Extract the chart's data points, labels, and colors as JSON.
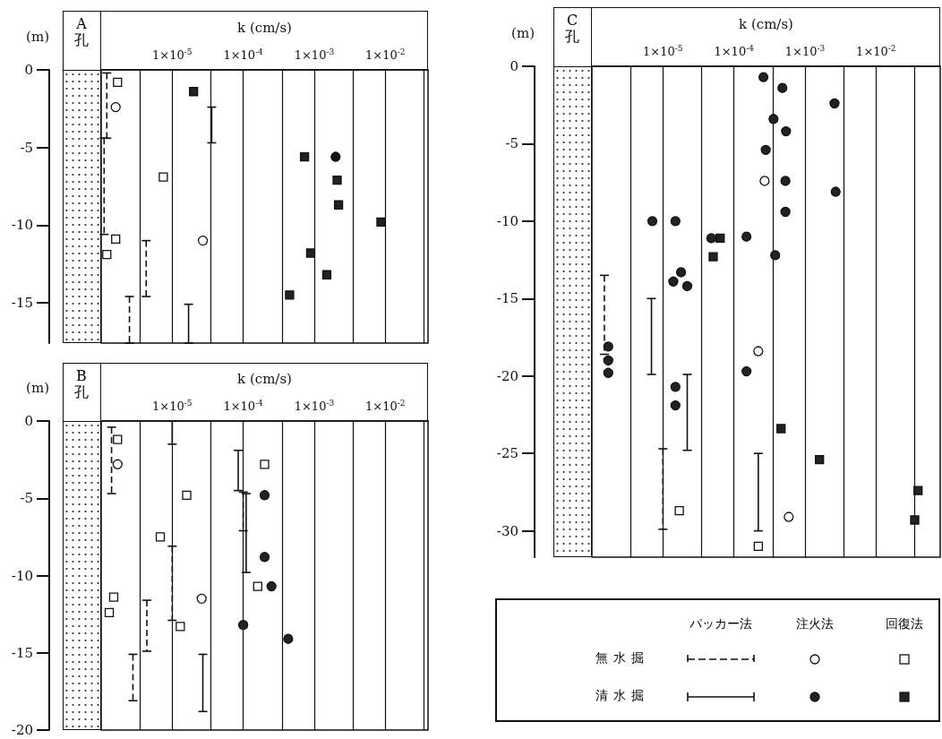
{
  "chart_data": [
    {
      "type": "scatter",
      "title": "A孔",
      "xlabel": "k (cm/s)",
      "ylabel": "(m)",
      "log": "x",
      "grid": "x",
      "xlim": [
        1e-06,
        0.04
      ],
      "ylim": [
        -17.6,
        0
      ],
      "xticks": [
        {
          "value": 3.5e-06,
          "label": null
        },
        {
          "value": 1e-05,
          "label": "1×10$^{-5}$"
        },
        {
          "value": 3.5e-05,
          "label": null
        },
        {
          "value": 0.0001,
          "label": "1×10$^{-4}$"
        },
        {
          "value": 0.00035,
          "label": null
        },
        {
          "value": 0.001,
          "label": "1×10$^{-3}$"
        },
        {
          "value": 0.0035,
          "label": null
        },
        {
          "value": 0.01,
          "label": "1×10$^{-2}$"
        },
        {
          "value": 0.035,
          "label": null
        }
      ],
      "yticks": [
        0,
        -5,
        -10,
        -15
      ],
      "series": [
        {
          "type": "line",
          "line_style": "dashed",
          "color": "#111111",
          "x": [
            1.2e-06,
            1.2e-06
          ],
          "values": [
            -0.2,
            -4.4
          ]
        },
        {
          "type": "line",
          "line_style": "dashed",
          "color": "#111111",
          "x": [
            1.1e-06,
            1.1e-06
          ],
          "values": [
            -4.4,
            -10.6
          ]
        },
        {
          "type": "line",
          "line_style": "dashed",
          "color": "#111111",
          "x": [
            4.3e-06,
            4.3e-06
          ],
          "values": [
            -11.0,
            -14.6
          ]
        },
        {
          "type": "line",
          "line_style": "dashed",
          "color": "#111111",
          "x": [
            2.5e-06,
            2.5e-06
          ],
          "values": [
            -14.6,
            -17.6
          ]
        },
        {
          "type": "line",
          "line_style": "solid",
          "color": "#111111",
          "x": [
            3.6e-05,
            3.6e-05
          ],
          "values": [
            -2.4,
            -4.7
          ]
        },
        {
          "type": "line",
          "line_style": "solid",
          "color": "#111111",
          "x": [
            1.7e-05,
            1.7e-05
          ],
          "values": [
            -15.1,
            -17.6
          ]
        },
        {
          "marker": "circle",
          "color": "#ffffff",
          "x": [
            1.6e-06,
            2.7e-05
          ],
          "values": [
            -2.4,
            -11.0
          ]
        },
        {
          "marker": "circle",
          "color": "#111111",
          "x": [
            0.002
          ],
          "values": [
            -5.6
          ]
        },
        {
          "marker": "square",
          "color": "#ffffff",
          "x": [
            1.7e-06,
            7.5e-06,
            1.6e-06,
            1.2e-06
          ],
          "values": [
            -0.8,
            -6.9,
            -10.9,
            -11.9
          ]
        },
        {
          "marker": "square",
          "color": "#222222",
          "x": [
            2e-05,
            0.00073,
            0.0021,
            0.0022,
            0.0087,
            0.00089,
            0.0015,
            0.00045
          ],
          "values": [
            -1.4,
            -5.6,
            -7.1,
            -8.7,
            -9.8,
            -11.8,
            -13.2,
            -14.5
          ]
        }
      ]
    },
    {
      "type": "scatter",
      "title": "B孔",
      "xlabel": "k (cm/s)",
      "ylabel": "(m)",
      "log": "x",
      "grid": "x",
      "xlim": [
        1e-06,
        0.04
      ],
      "ylim": [
        -20,
        0
      ],
      "xticks": [
        {
          "value": 3.5e-06,
          "label": null
        },
        {
          "value": 1e-05,
          "label": "1×10$^{-5}$"
        },
        {
          "value": 3.5e-05,
          "label": null
        },
        {
          "value": 0.0001,
          "label": "1×10$^{-4}$"
        },
        {
          "value": 0.00035,
          "label": null
        },
        {
          "value": 0.001,
          "label": "1×10$^{-3}$"
        },
        {
          "value": 0.0035,
          "label": null
        },
        {
          "value": 0.01,
          "label": "1×10$^{-2}$"
        },
        {
          "value": 0.035,
          "label": null
        }
      ],
      "yticks": [
        0,
        -5,
        -10,
        -15,
        -20
      ],
      "series": [
        {
          "type": "line",
          "line_style": "dashed",
          "color": "#111111",
          "x": [
            1.4e-06,
            1.4e-06
          ],
          "values": [
            -0.4,
            -4.7
          ]
        },
        {
          "type": "line",
          "line_style": "dashed",
          "color": "#111111",
          "x": [
            1e-05,
            1e-05
          ],
          "values": [
            -8.1,
            -12.9
          ]
        },
        {
          "type": "line",
          "line_style": "dashed",
          "color": "#111111",
          "x": [
            4.4e-06,
            4.4e-06
          ],
          "values": [
            -11.6,
            -14.9
          ]
        },
        {
          "type": "line",
          "line_style": "dashed",
          "color": "#111111",
          "x": [
            2.8e-06,
            2.8e-06
          ],
          "values": [
            -15.1,
            -18.1
          ]
        },
        {
          "type": "line",
          "line_style": "dashed",
          "color": "#111111",
          "x": [
            0.0001,
            0.0001
          ],
          "values": [
            -4.6,
            -7.1
          ]
        },
        {
          "type": "line",
          "line_style": "solid",
          "color": "#111111",
          "x": [
            1e-05,
            1e-05
          ],
          "values": [
            0,
            -1.5
          ]
        },
        {
          "type": "line",
          "line_style": "solid",
          "color": "#111111",
          "x": [
            2.7e-05,
            2.7e-05
          ],
          "values": [
            -15.1,
            -18.8
          ]
        },
        {
          "type": "line",
          "line_style": "solid",
          "color": "#111111",
          "x": [
            8.5e-05,
            8.5e-05
          ],
          "values": [
            -1.9,
            -4.5
          ]
        },
        {
          "type": "line",
          "line_style": "solid",
          "color": "#111111",
          "x": [
            0.00011,
            0.00011
          ],
          "values": [
            -4.7,
            -9.8
          ]
        },
        {
          "marker": "circle",
          "color": "#ffffff",
          "x": [
            1.7e-06,
            2.6e-05
          ],
          "values": [
            -2.8,
            -11.5
          ]
        },
        {
          "marker": "circle",
          "color": "#222222",
          "x": [
            0.0002,
            0.0002,
            0.00025,
            0.0001,
            0.00043
          ],
          "values": [
            -4.8,
            -8.8,
            -10.7,
            -13.2,
            -14.1
          ]
        },
        {
          "marker": "square",
          "color": "#ffffff",
          "x": [
            1.7e-06,
            1.6e-05,
            6.8e-06,
            1.5e-06,
            1.3e-06,
            1.3e-05,
            0.0002,
            0.00016
          ],
          "values": [
            -1.2,
            -4.8,
            -7.5,
            -11.4,
            -12.4,
            -13.3,
            -2.8,
            -10.7
          ]
        }
      ]
    },
    {
      "type": "scatter",
      "title": "C孔",
      "xlabel": "k (cm/s)",
      "ylabel": "(m)",
      "log": "x",
      "grid": "x",
      "xlim": [
        1e-06,
        0.08
      ],
      "ylim": [
        -31.7,
        0
      ],
      "xticks": [
        {
          "value": 3.5e-06,
          "label": null
        },
        {
          "value": 1e-05,
          "label": "1×10$^{-5}$"
        },
        {
          "value": 3.5e-05,
          "label": null
        },
        {
          "value": 0.0001,
          "label": "1×10$^{-4}$"
        },
        {
          "value": 0.00035,
          "label": null
        },
        {
          "value": 0.001,
          "label": "1×10$^{-3}$"
        },
        {
          "value": 0.0035,
          "label": null
        },
        {
          "value": 0.01,
          "label": "1×10$^{-2}$"
        },
        {
          "value": 0.035,
          "label": null
        }
      ],
      "yticks": [
        0,
        -5,
        -10,
        -15,
        -20,
        -25,
        -30
      ],
      "annotations": [
        "パッカー法",
        "注火法",
        "回復法",
        "無水掘",
        "清水掘"
      ],
      "series": [
        {
          "type": "line",
          "line_style": "dashed",
          "color": "#111111",
          "x": [
            1.5e-06,
            1.5e-06
          ],
          "values": [
            -13.5,
            -18.6
          ]
        },
        {
          "type": "line",
          "line_style": "dashed",
          "color": "#111111",
          "x": [
            1e-05,
            1e-05
          ],
          "values": [
            -24.7,
            -29.9
          ]
        },
        {
          "type": "line",
          "line_style": "solid",
          "color": "#111111",
          "x": [
            6.9e-06,
            6.9e-06
          ],
          "values": [
            -15.0,
            -19.9
          ]
        },
        {
          "type": "line",
          "line_style": "solid",
          "color": "#111111",
          "x": [
            2.2e-05,
            2.2e-05
          ],
          "values": [
            -19.9,
            -24.8
          ]
        },
        {
          "type": "line",
          "line_style": "solid",
          "color": "#111111",
          "x": [
            0.00022,
            0.00022
          ],
          "values": [
            -25.0,
            -30.0
          ]
        },
        {
          "marker": "circle",
          "color": "#ffffff",
          "x": [
            0.00027,
            0.00022,
            0.00059
          ],
          "values": [
            -7.4,
            -18.4,
            -29.1
          ]
        },
        {
          "marker": "circle",
          "color": "#222222",
          "x": [
            1.7e-06,
            1.7e-06,
            1.7e-06,
            7.1e-06,
            1.5e-05,
            1.8e-05,
            1.4e-05,
            2.2e-05,
            1.5e-05,
            1.5e-05,
            4.8e-05,
            0.00015,
            0.00015,
            0.00026,
            0.00048,
            0.0026,
            0.00036,
            0.00054,
            0.00028,
            0.00053,
            0.0027,
            0.00053,
            0.00038
          ],
          "values": [
            -18.1,
            -19.0,
            -19.8,
            -10.0,
            -10.0,
            -13.3,
            -13.9,
            -14.2,
            -20.7,
            -21.9,
            -11.1,
            -11.0,
            -19.7,
            -0.7,
            -1.4,
            -2.4,
            -3.4,
            -4.2,
            -5.4,
            -7.4,
            -8.1,
            -9.4,
            -12.2
          ]
        },
        {
          "marker": "square",
          "color": "#ffffff",
          "x": [
            1.7e-05,
            0.00022
          ],
          "values": [
            -28.7,
            -31.0
          ]
        },
        {
          "marker": "square",
          "color": "#222222",
          "x": [
            6.4e-05,
            5.1e-05,
            0.00046,
            0.0016,
            0.039,
            0.035
          ],
          "values": [
            -11.1,
            -12.3,
            -23.4,
            -25.4,
            -27.4,
            -29.3
          ]
        }
      ]
    }
  ]
}
